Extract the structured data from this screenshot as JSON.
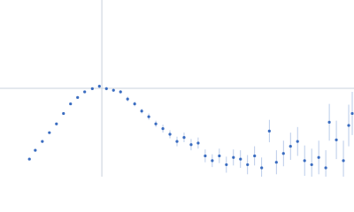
{
  "chart_data": {
    "type": "scatter",
    "color": "#3a6cc0",
    "error_color": "#a9bfe4",
    "guide_color": "#c8d0dc",
    "xlim": [
      0,
      6.02
    ],
    "ylim": [
      0,
      2.208
    ],
    "guides": {
      "x": 1.732,
      "y": 1.104
    },
    "x": [
      0.5,
      0.6,
      0.72,
      0.84,
      0.96,
      1.08,
      1.2,
      1.32,
      1.44,
      1.57,
      1.69,
      1.81,
      1.93,
      2.05,
      2.17,
      2.29,
      2.41,
      2.53,
      2.65,
      2.77,
      2.89,
      3.01,
      3.13,
      3.25,
      3.37,
      3.49,
      3.61,
      3.73,
      3.85,
      3.97,
      4.09,
      4.21,
      4.33,
      4.45,
      4.58,
      4.7,
      4.82,
      4.94,
      5.06,
      5.18,
      5.3,
      5.42,
      5.54,
      5.6,
      5.72,
      5.84,
      5.93,
      5.99
    ],
    "values": [
      0.22,
      0.33,
      0.44,
      0.55,
      0.66,
      0.79,
      0.91,
      0.99,
      1.06,
      1.1,
      1.13,
      1.1,
      1.08,
      1.06,
      0.97,
      0.91,
      0.82,
      0.75,
      0.66,
      0.6,
      0.53,
      0.44,
      0.49,
      0.4,
      0.42,
      0.26,
      0.2,
      0.26,
      0.15,
      0.24,
      0.22,
      0.15,
      0.26,
      0.11,
      0.57,
      0.18,
      0.29,
      0.38,
      0.44,
      0.2,
      0.15,
      0.24,
      0.11,
      0.68,
      0.46,
      0.2,
      0.64,
      0.79
    ],
    "errors": [
      0.01,
      0.01,
      0.01,
      0.01,
      0.01,
      0.01,
      0.01,
      0.01,
      0.01,
      0.01,
      0.02,
      0.02,
      0.02,
      0.02,
      0.03,
      0.03,
      0.03,
      0.04,
      0.04,
      0.05,
      0.05,
      0.06,
      0.06,
      0.07,
      0.07,
      0.08,
      0.08,
      0.09,
      0.1,
      0.1,
      0.11,
      0.12,
      0.12,
      0.13,
      0.14,
      0.15,
      0.16,
      0.17,
      0.18,
      0.19,
      0.2,
      0.21,
      0.22,
      0.23,
      0.24,
      0.25,
      0.26,
      0.27
    ]
  }
}
